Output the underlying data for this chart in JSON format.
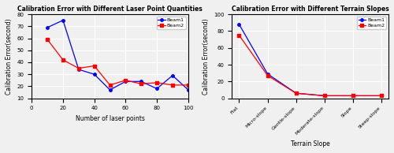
{
  "plot1": {
    "title": "Calibration Error with Different Laser Point Quantities",
    "xlabel": "Number of laser points",
    "ylabel": "Calibration Error(second)",
    "xlim": [
      0,
      100
    ],
    "ylim": [
      10,
      80
    ],
    "yticks": [
      10,
      20,
      30,
      40,
      50,
      60,
      70,
      80
    ],
    "xticks": [
      0,
      20,
      40,
      60,
      80,
      100
    ],
    "beam1_x": [
      10,
      20,
      30,
      40,
      50,
      60,
      70,
      80,
      90,
      100
    ],
    "beam1_y": [
      69,
      75,
      34,
      30,
      17,
      24,
      24,
      18,
      29,
      17
    ],
    "beam2_x": [
      10,
      20,
      30,
      40,
      50,
      60,
      70,
      80,
      90,
      100
    ],
    "beam2_y": [
      59,
      42,
      35,
      37,
      21,
      25,
      22,
      23,
      21,
      21
    ],
    "beam1_color": "#0000ff",
    "beam2_color": "#ff0000",
    "marker1": "o",
    "marker2": "s"
  },
  "plot2": {
    "title": "Calibration Error with Different Terrain Slopes",
    "xlabel": "Terrain Slope",
    "ylabel": "Calibration Error(second)",
    "ylim": [
      0,
      100
    ],
    "yticks": [
      0,
      20,
      40,
      60,
      80,
      100
    ],
    "categories": [
      "Flat",
      "Micro-slope",
      "Gentle-slope",
      "Moderate-slope",
      "Slope",
      "Steep-slope"
    ],
    "beam1_y": [
      88,
      29,
      6,
      3,
      3,
      3
    ],
    "beam2_y": [
      75,
      27,
      6,
      3,
      3,
      3
    ],
    "beam1_color": "#0000ff",
    "beam2_color": "#ff0000",
    "marker1": "o",
    "marker2": "s"
  },
  "legend_beam1": "Beam1",
  "legend_beam2": "Beam2",
  "fig_width": 5.0,
  "fig_height": 1.94,
  "dpi": 100,
  "bg_color": "#f0f0f0"
}
